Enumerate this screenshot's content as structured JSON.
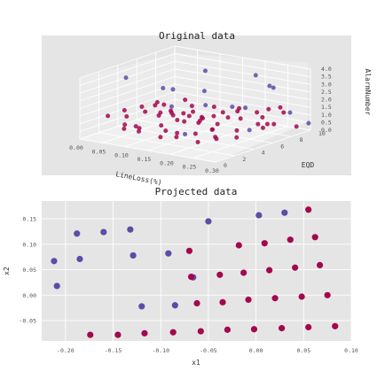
{
  "colors": {
    "purple": "#5b4da6",
    "crimson": "#a3084f",
    "panel_bg": "#e5e5e5",
    "pane3d": "#ebebeb",
    "grid": "#ffffff"
  },
  "chart_data": [
    {
      "type": "scatter3d",
      "title": "Original data",
      "xlabel": "LineLoss(%)",
      "ylabel": "EQD",
      "zlabel": "AlarmNumber",
      "x_ticks": [
        "0.00",
        "0.05",
        "0.10",
        "0.15",
        "0.20",
        "0.25",
        "0.30"
      ],
      "y_ticks": [
        "0",
        "2",
        "4",
        "6",
        "8",
        "10"
      ],
      "z_ticks": [
        "0.0",
        "0.5",
        "1.0",
        "1.5",
        "2.0",
        "2.5",
        "3.0",
        "3.5",
        "4.0"
      ],
      "xlim": [
        0,
        0.3
      ],
      "ylim": [
        0,
        10
      ],
      "zlim": [
        0,
        4
      ],
      "grid": true,
      "series": [
        {
          "color": "#5b4da6",
          "points": [
            [
              0.06,
              2.0,
              3.9
            ],
            [
              0.12,
              7.5,
              3.5
            ],
            [
              0.2,
              9.0,
              3.3
            ],
            [
              0.26,
              8.0,
              3.0
            ],
            [
              0.1,
              4.0,
              3.0
            ],
            [
              0.16,
              5.5,
              2.8
            ],
            [
              0.22,
              9.5,
              2.6
            ],
            [
              0.08,
              6.0,
              2.4
            ],
            [
              0.14,
              3.0,
              2.2
            ],
            [
              0.24,
              6.0,
              2.0
            ],
            [
              0.19,
              7.0,
              1.6
            ],
            [
              0.28,
              8.8,
              1.3
            ],
            [
              0.11,
              8.0,
              1.1
            ],
            [
              0.27,
              5.0,
              0.9
            ],
            [
              0.18,
              2.5,
              0.7
            ],
            [
              0.3,
              9.8,
              0.5
            ]
          ]
        },
        {
          "color": "#a3084f",
          "points": [
            [
              0.02,
              2.0,
              1.2
            ],
            [
              0.03,
              3.5,
              0.9
            ],
            [
              0.04,
              2.8,
              1.5
            ],
            [
              0.05,
              4.5,
              1.1
            ],
            [
              0.06,
              1.8,
              0.6
            ],
            [
              0.07,
              3.2,
              1.8
            ],
            [
              0.08,
              2.4,
              0.4
            ],
            [
              0.09,
              4.2,
              1.3
            ],
            [
              0.1,
              1.5,
              0.9
            ],
            [
              0.11,
              3.8,
              0.3
            ],
            [
              0.12,
              2.6,
              1.6
            ],
            [
              0.13,
              4.8,
              0.8
            ],
            [
              0.14,
              1.9,
              1.2
            ],
            [
              0.15,
              3.1,
              0.5
            ],
            [
              0.16,
              2.2,
              1.9
            ],
            [
              0.17,
              4.4,
              1.0
            ],
            [
              0.18,
              1.6,
              0.7
            ],
            [
              0.19,
              3.6,
              1.4
            ],
            [
              0.2,
              2.9,
              0.2
            ],
            [
              0.21,
              4.1,
              1.7
            ],
            [
              0.22,
              1.7,
              1.1
            ],
            [
              0.23,
              3.3,
              0.6
            ],
            [
              0.24,
              2.5,
              1.3
            ],
            [
              0.25,
              4.6,
              0.4
            ],
            [
              0.26,
              2.0,
              0.9
            ],
            [
              0.04,
              4.0,
              0.2
            ],
            [
              0.07,
              1.4,
              1.0
            ],
            [
              0.1,
              4.9,
              1.2
            ],
            [
              0.13,
              2.3,
              0.3
            ],
            [
              0.16,
              3.9,
              1.5
            ],
            [
              0.03,
              6.5,
              1.0
            ],
            [
              0.05,
              7.2,
              0.6
            ],
            [
              0.06,
              6.0,
              1.3
            ],
            [
              0.08,
              8.0,
              0.9
            ],
            [
              0.09,
              6.8,
              1.6
            ],
            [
              0.11,
              7.6,
              0.4
            ],
            [
              0.12,
              6.2,
              1.1
            ],
            [
              0.14,
              8.4,
              0.7
            ],
            [
              0.15,
              7.0,
              1.4
            ],
            [
              0.17,
              6.4,
              0.5
            ],
            [
              0.18,
              8.2,
              1.2
            ],
            [
              0.2,
              7.4,
              0.8
            ],
            [
              0.21,
              6.6,
              1.5
            ],
            [
              0.23,
              8.8,
              0.3
            ],
            [
              0.24,
              7.8,
              1.0
            ],
            [
              0.26,
              6.9,
              0.6
            ],
            [
              0.27,
              8.6,
              1.3
            ],
            [
              0.28,
              7.1,
              0.9
            ],
            [
              0.29,
              9.0,
              0.4
            ],
            [
              0.22,
              9.4,
              1.1
            ],
            [
              0.19,
              9.6,
              0.7
            ],
            [
              0.25,
              9.2,
              1.4
            ],
            [
              0.1,
              5.5,
              0.6
            ],
            [
              0.12,
              5.2,
              1.2
            ],
            [
              0.15,
              5.8,
              0.9
            ],
            [
              0.18,
              5.4,
              0.4
            ],
            [
              0.21,
              5.6,
              1.3
            ],
            [
              0.24,
              5.1,
              0.7
            ],
            [
              0.27,
              5.9,
              1.1
            ],
            [
              0.06,
              5.3,
              1.6
            ]
          ]
        }
      ]
    },
    {
      "type": "scatter",
      "title": "Projected data",
      "xlabel": "x1",
      "ylabel": "x2",
      "x_ticks": [
        "-0.20",
        "-0.15",
        "-0.10",
        "-0.05",
        "0.00",
        "0.05",
        "0.10"
      ],
      "y_ticks": [
        "-0.05",
        "0.00",
        "0.05",
        "0.10",
        "0.15"
      ],
      "xlim": [
        -0.225,
        0.1
      ],
      "ylim": [
        -0.09,
        0.185
      ],
      "grid": true,
      "series": [
        {
          "color": "#5b4da6",
          "points": [
            [
              -0.212,
              0.067
            ],
            [
              -0.209,
              0.018
            ],
            [
              -0.188,
              0.121
            ],
            [
              -0.185,
              0.071
            ],
            [
              -0.16,
              0.124
            ],
            [
              -0.132,
              0.129
            ],
            [
              -0.129,
              0.078
            ],
            [
              -0.12,
              -0.022
            ],
            [
              -0.092,
              0.082
            ],
            [
              -0.085,
              -0.02
            ],
            [
              -0.066,
              0.035
            ],
            [
              -0.05,
              0.145
            ],
            [
              0.003,
              0.157
            ],
            [
              0.03,
              0.162
            ]
          ]
        },
        {
          "color": "#a3084f",
          "points": [
            [
              -0.174,
              -0.078
            ],
            [
              -0.145,
              -0.078
            ],
            [
              -0.117,
              -0.075
            ],
            [
              -0.087,
              -0.073
            ],
            [
              -0.058,
              -0.071
            ],
            [
              -0.03,
              -0.068
            ],
            [
              -0.002,
              -0.067
            ],
            [
              0.027,
              -0.065
            ],
            [
              0.055,
              -0.063
            ],
            [
              0.083,
              -0.061
            ],
            [
              -0.07,
              0.087
            ],
            [
              -0.068,
              0.036
            ],
            [
              -0.062,
              -0.016
            ],
            [
              -0.038,
              0.04
            ],
            [
              -0.035,
              -0.014
            ],
            [
              -0.018,
              0.098
            ],
            [
              -0.013,
              0.044
            ],
            [
              -0.008,
              -0.009
            ],
            [
              0.009,
              0.102
            ],
            [
              0.014,
              0.049
            ],
            [
              0.02,
              -0.006
            ],
            [
              0.036,
              0.109
            ],
            [
              0.041,
              0.054
            ],
            [
              0.048,
              -0.003
            ],
            [
              0.055,
              0.168
            ],
            [
              0.062,
              0.114
            ],
            [
              0.067,
              0.059
            ],
            [
              0.075,
              0.0
            ]
          ]
        }
      ]
    }
  ]
}
